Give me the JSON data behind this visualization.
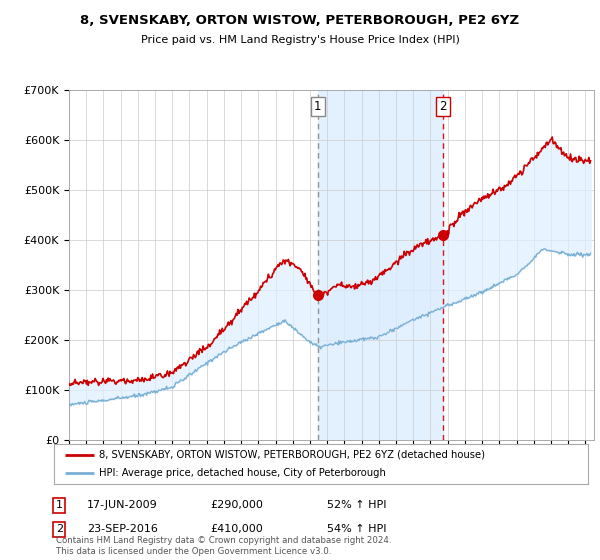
{
  "title": "8, SVENSKABY, ORTON WISTOW, PETERBOROUGH, PE2 6YZ",
  "subtitle": "Price paid vs. HM Land Registry's House Price Index (HPI)",
  "legend_line1": "8, SVENSKABY, ORTON WISTOW, PETERBOROUGH, PE2 6YZ (detached house)",
  "legend_line2": "HPI: Average price, detached house, City of Peterborough",
  "sale1_date": "17-JUN-2009",
  "sale1_price": 290000,
  "sale1_pct": "52% ↑ HPI",
  "sale2_date": "23-SEP-2016",
  "sale2_price": 410000,
  "sale2_pct": "54% ↑ HPI",
  "footnote": "Contains HM Land Registry data © Crown copyright and database right 2024.\nThis data is licensed under the Open Government Licence v3.0.",
  "xmin": 1995.0,
  "xmax": 2025.5,
  "ymin": 0,
  "ymax": 700000,
  "sale1_x": 2009.46,
  "sale2_x": 2016.73,
  "red_color": "#cc0000",
  "blue_color": "#7ab0d4",
  "fill_color": "#ddeeff",
  "grid_color": "#cccccc",
  "bg_color": "#ffffff"
}
